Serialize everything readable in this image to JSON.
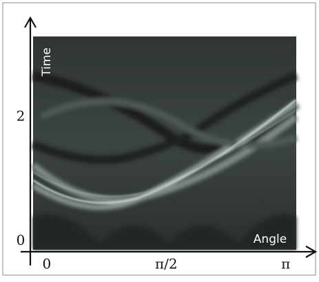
{
  "chart_data": {
    "type": "image",
    "x_label": "Angle",
    "y_label": "Time",
    "xlim": [
      -0.18,
      3.28
    ],
    "ylim": [
      -0.14,
      3.3
    ],
    "xticks": [
      0,
      {
        "value": 1.5708,
        "label": "π/2"
      },
      {
        "value": 3.1416,
        "label": "π"
      }
    ],
    "yticks": [
      0,
      2
    ],
    "grid": false
  }
}
